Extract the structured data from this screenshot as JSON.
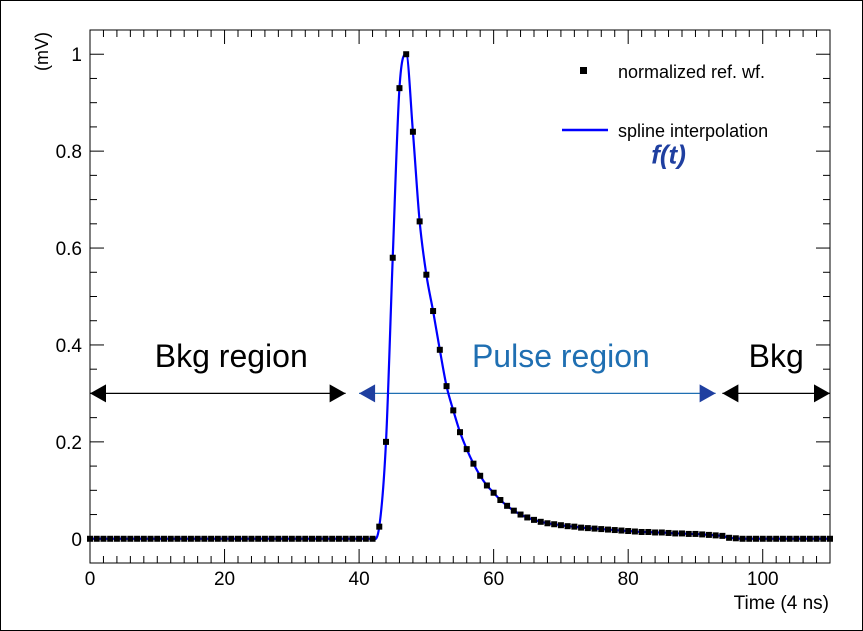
{
  "chart_data": {
    "type": "scatter",
    "xlabel": "Time (4 ns)",
    "ylabel": "(mV)",
    "xlim": [
      0,
      110
    ],
    "ylim": [
      -0.05,
      1.05
    ],
    "x_ticks": [
      0,
      20,
      40,
      60,
      80,
      100
    ],
    "x_tick_labels": [
      "0",
      "20",
      "40",
      "60",
      "80",
      "100"
    ],
    "y_ticks": [
      0,
      0.2,
      0.4,
      0.6,
      0.8,
      1
    ],
    "y_tick_labels": [
      "0",
      "0.2",
      "0.4",
      "0.6",
      "0.8",
      "1"
    ],
    "grid": false,
    "legend_position": "top-right",
    "legend": [
      {
        "label": "normalized ref. wf.",
        "marker": "square",
        "color": "#000000"
      },
      {
        "label": "spline interpolation",
        "marker": "line",
        "color": "#0000ff"
      }
    ],
    "series": [
      {
        "name": "normalized ref. wf.",
        "kind": "points",
        "color": "#000000",
        "x": [
          0,
          1,
          2,
          3,
          4,
          5,
          6,
          7,
          8,
          9,
          10,
          11,
          12,
          13,
          14,
          15,
          16,
          17,
          18,
          19,
          20,
          21,
          22,
          23,
          24,
          25,
          26,
          27,
          28,
          29,
          30,
          31,
          32,
          33,
          34,
          35,
          36,
          37,
          38,
          39,
          40,
          41,
          42,
          43,
          44,
          45,
          46,
          47,
          48,
          49,
          50,
          51,
          52,
          53,
          54,
          55,
          56,
          57,
          58,
          59,
          60,
          61,
          62,
          63,
          64,
          65,
          66,
          67,
          68,
          69,
          70,
          71,
          72,
          73,
          74,
          75,
          76,
          77,
          78,
          79,
          80,
          81,
          82,
          83,
          84,
          85,
          86,
          87,
          88,
          89,
          90,
          91,
          92,
          93,
          94,
          95,
          96,
          97,
          98,
          99,
          100,
          101,
          102,
          103,
          104,
          105,
          106,
          107,
          108,
          109,
          110
        ],
        "y": [
          0,
          0,
          0,
          0,
          0,
          0,
          0,
          0,
          0,
          0,
          0,
          0,
          0,
          0,
          0,
          0,
          0,
          0,
          0,
          0,
          0,
          0,
          0,
          0,
          0,
          0,
          0,
          0,
          0,
          0,
          0,
          0,
          0,
          0,
          0,
          0,
          0,
          0,
          0,
          0,
          0,
          0,
          0,
          0.025,
          0.2,
          0.58,
          0.93,
          1.0,
          0.84,
          0.655,
          0.545,
          0.47,
          0.39,
          0.315,
          0.265,
          0.22,
          0.185,
          0.155,
          0.13,
          0.11,
          0.095,
          0.08,
          0.068,
          0.058,
          0.05,
          0.044,
          0.039,
          0.035,
          0.032,
          0.03,
          0.028,
          0.026,
          0.025,
          0.023,
          0.022,
          0.021,
          0.02,
          0.019,
          0.018,
          0.017,
          0.016,
          0.015,
          0.014,
          0.014,
          0.013,
          0.013,
          0.012,
          0.011,
          0.011,
          0.01,
          0.01,
          0.009,
          0.008,
          0.007,
          0.006,
          0.002,
          0.001,
          0,
          0,
          0,
          0,
          0,
          0,
          0,
          0,
          0,
          0,
          0,
          0,
          0,
          0
        ]
      },
      {
        "name": "spline interpolation",
        "kind": "line",
        "color": "#0000ff"
      }
    ],
    "annotations": [
      {
        "text": "f(t)",
        "color": "#1f3fa0",
        "style": "bold-italic",
        "x": 86,
        "y": 0.775
      },
      {
        "text": "Bkg region",
        "color": "#000000",
        "x": 21,
        "y": 0.355
      },
      {
        "text": "Pulse region",
        "color": "#1f6fb2",
        "x": 70,
        "y": 0.355
      },
      {
        "text": "Bkg",
        "color": "#000000",
        "x": 102,
        "y": 0.355
      }
    ],
    "arrows": [
      {
        "name": "bkg-left-arrow",
        "x1": 0,
        "x2": 38,
        "y": 0.3,
        "color": "#000000",
        "head": "#000000"
      },
      {
        "name": "pulse-region-arrow",
        "x1": 40,
        "x2": 93,
        "y": 0.3,
        "color": "#1f6fb2",
        "head": "#1f3fa0"
      },
      {
        "name": "bkg-right-arrow",
        "x1": 94,
        "x2": 110,
        "y": 0.3,
        "color": "#000000",
        "head": "#000000"
      }
    ]
  }
}
